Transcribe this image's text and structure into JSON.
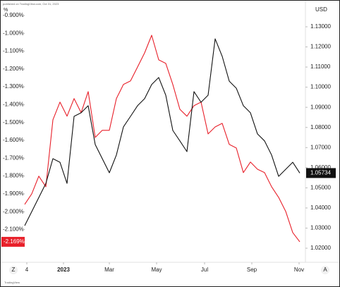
{
  "chart_data": {
    "type": "line",
    "header": "published on TradingView.com, Oct 31, 2023",
    "y_unit": "%",
    "y2_unit": "USD",
    "footer": "TradingView",
    "buttons": [
      "Z",
      "A"
    ],
    "xlim": [
      0,
      39.5
    ],
    "xticks": [
      {
        "value": 0.3,
        "label": "4"
      },
      {
        "value": 5.5,
        "label": "2023"
      },
      {
        "value": 12,
        "label": "Mar"
      },
      {
        "value": 18.7,
        "label": "May"
      },
      {
        "value": 25.5,
        "label": "Jul"
      },
      {
        "value": 32.2,
        "label": "Sep"
      },
      {
        "value": 38.9,
        "label": "Nov"
      }
    ],
    "x": [
      0,
      1,
      2,
      3,
      4,
      5,
      6,
      7,
      8,
      9,
      10,
      11,
      12,
      13,
      14,
      15,
      16,
      17,
      18,
      19,
      20,
      21,
      22,
      23,
      24,
      25,
      26,
      27,
      28,
      29,
      30,
      31,
      32,
      33,
      34,
      35,
      36,
      37,
      38,
      39
    ],
    "ylim": [
      -2.276,
      -0.853
    ],
    "yticks": [
      {
        "value": -0.9,
        "label": "-0.900%"
      },
      {
        "value": -1.0,
        "label": "-1.000%"
      },
      {
        "value": -1.1,
        "label": "-1.100%"
      },
      {
        "value": -1.2,
        "label": "-1.200%"
      },
      {
        "value": -1.3,
        "label": "-1.300%"
      },
      {
        "value": -1.4,
        "label": "-1.400%"
      },
      {
        "value": -1.5,
        "label": "-1.500%"
      },
      {
        "value": -1.6,
        "label": "-1.600%"
      },
      {
        "value": -1.7,
        "label": "-1.700%"
      },
      {
        "value": -1.8,
        "label": "-1.800%"
      },
      {
        "value": -1.9,
        "label": "-1.900%"
      },
      {
        "value": -2.0,
        "label": "-2.000%"
      },
      {
        "value": -2.1,
        "label": "-2.100%"
      }
    ],
    "y2lim": [
      1.0137,
      1.1398
    ],
    "y2ticks": [
      {
        "value": 1.13,
        "label": "1.13000"
      },
      {
        "value": 1.12,
        "label": "1.12000"
      },
      {
        "value": 1.11,
        "label": "1.11000"
      },
      {
        "value": 1.1,
        "label": "1.10000"
      },
      {
        "value": 1.09,
        "label": "1.09000"
      },
      {
        "value": 1.08,
        "label": "1.08000"
      },
      {
        "value": 1.07,
        "label": "1.07000"
      },
      {
        "value": 1.06,
        "label": "1.06000"
      },
      {
        "value": 1.05,
        "label": "1.05000"
      },
      {
        "value": 1.04,
        "label": "1.04000"
      },
      {
        "value": 1.03,
        "label": "1.03000"
      },
      {
        "value": 1.02,
        "label": "1.02000"
      }
    ],
    "grid": false,
    "series": [
      {
        "color": "#e8202a",
        "axis": "y",
        "values": [
          -1.959,
          -1.9,
          -1.801,
          -1.86,
          -1.485,
          -1.386,
          -1.465,
          -1.366,
          -1.445,
          -1.327,
          -1.584,
          -1.544,
          -1.544,
          -1.366,
          -1.287,
          -1.267,
          -1.189,
          -1.11,
          -1.011,
          -1.149,
          -1.169,
          -1.287,
          -1.426,
          -1.465,
          -1.406,
          -1.386,
          -1.564,
          -1.525,
          -1.505,
          -1.623,
          -1.643,
          -1.781,
          -1.722,
          -1.762,
          -1.781,
          -1.86,
          -1.92,
          -1.998,
          -2.117,
          -2.169
        ],
        "value_labels": [
          null,
          null,
          null,
          null,
          null,
          null,
          null,
          null,
          null,
          null,
          null,
          null,
          null,
          null,
          null,
          null,
          null,
          null,
          null,
          null,
          null,
          null,
          null,
          null,
          null,
          null,
          null,
          null,
          null,
          null,
          null,
          null,
          null,
          null,
          null,
          null,
          null,
          null,
          null,
          "-2.169%"
        ]
      },
      {
        "color": "#111111",
        "axis": "y2",
        "values": [
          1.0312,
          1.0382,
          1.0452,
          1.0522,
          1.0645,
          1.0627,
          1.0522,
          1.0855,
          1.0873,
          1.0908,
          1.0715,
          1.0645,
          1.0575,
          1.0663,
          1.0803,
          1.0855,
          1.0908,
          1.0943,
          1.1013,
          1.1048,
          1.096,
          1.0785,
          1.0733,
          1.068,
          1.0978,
          1.0925,
          1.096,
          1.124,
          1.1153,
          1.103,
          1.0995,
          1.0908,
          1.0873,
          1.0768,
          1.0733,
          1.0663,
          1.0557,
          1.0592,
          1.0627,
          1.05734
        ],
        "value_labels": [
          null,
          null,
          null,
          null,
          null,
          null,
          null,
          null,
          null,
          null,
          null,
          null,
          null,
          null,
          null,
          null,
          null,
          null,
          null,
          null,
          null,
          null,
          null,
          null,
          null,
          null,
          null,
          null,
          null,
          null,
          null,
          null,
          null,
          null,
          null,
          null,
          null,
          null,
          null,
          "1.05734"
        ]
      }
    ]
  }
}
